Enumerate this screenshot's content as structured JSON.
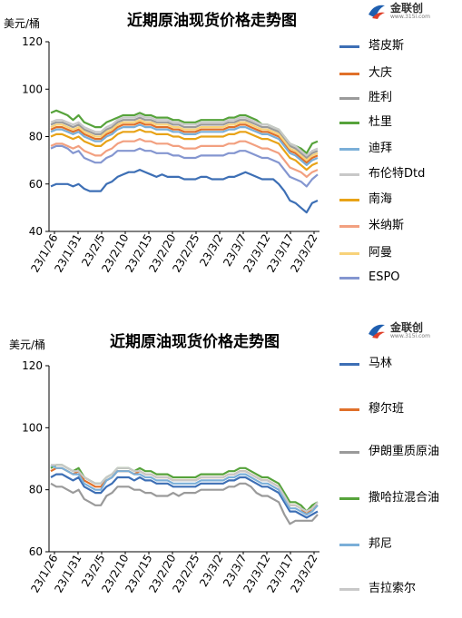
{
  "chart_data": [
    {
      "type": "line",
      "title": "近期原油现货价格走势图",
      "ylabel": "美元/桶",
      "ylim": [
        40,
        120
      ],
      "yticks": [
        40,
        60,
        80,
        100,
        120
      ],
      "xtick_labels": [
        "23/1/26",
        "23/1/31",
        "23/2/5",
        "23/2/10",
        "23/2/15",
        "23/2/20",
        "23/2/25",
        "23/3/2",
        "23/3/7",
        "23/3/12",
        "23/3/17",
        "23/3/22"
      ],
      "x_start": "23/1/26",
      "x_end": "23/3/22",
      "legend_position": "right",
      "grid": false,
      "series": [
        {
          "name": "塔皮斯",
          "color": "#3d6fb5",
          "values": [
            59,
            60,
            60,
            60,
            59,
            60,
            58,
            57,
            57,
            57,
            60,
            61,
            63,
            64,
            65,
            65,
            66,
            65,
            64,
            63,
            64,
            63,
            63,
            63,
            62,
            62,
            62,
            63,
            63,
            62,
            62,
            62,
            63,
            63,
            64,
            65,
            64,
            63,
            62,
            62,
            62,
            60,
            57,
            53,
            52,
            50,
            48,
            52,
            53
          ]
        },
        {
          "name": "大庆",
          "color": "#e0702a",
          "values": [
            83,
            84,
            84,
            83,
            82,
            83,
            81,
            80,
            79,
            79,
            81,
            82,
            84,
            85,
            85,
            85,
            86,
            85,
            85,
            84,
            84,
            84,
            83,
            83,
            82,
            82,
            82,
            83,
            83,
            83,
            83,
            83,
            84,
            84,
            85,
            85,
            84,
            83,
            82,
            82,
            81,
            80,
            77,
            74,
            73,
            71,
            69,
            71,
            72
          ]
        },
        {
          "name": "胜利",
          "color": "#9a9a9a",
          "values": [
            85,
            86,
            86,
            85,
            84,
            85,
            83,
            82,
            81,
            81,
            83,
            84,
            86,
            87,
            87,
            87,
            88,
            87,
            87,
            86,
            86,
            86,
            85,
            85,
            84,
            84,
            84,
            85,
            85,
            85,
            85,
            85,
            86,
            86,
            87,
            87,
            86,
            85,
            84,
            84,
            83,
            82,
            79,
            76,
            75,
            73,
            71,
            73,
            74
          ]
        },
        {
          "name": "杜里",
          "color": "#56a33b",
          "values": [
            90,
            91,
            90,
            89,
            87,
            89,
            86,
            85,
            84,
            84,
            86,
            87,
            88,
            89,
            89,
            89,
            90,
            89,
            89,
            88,
            88,
            88,
            87,
            87,
            86,
            86,
            86,
            87,
            87,
            87,
            87,
            87,
            88,
            88,
            89,
            89,
            88,
            87,
            85,
            85,
            84,
            83,
            80,
            77,
            76,
            75,
            73,
            77,
            78
          ]
        },
        {
          "name": "迪拜",
          "color": "#7bafd8",
          "values": [
            82,
            83,
            83,
            82,
            81,
            82,
            80,
            79,
            78,
            78,
            80,
            81,
            83,
            84,
            84,
            84,
            85,
            84,
            84,
            83,
            83,
            83,
            82,
            82,
            81,
            81,
            81,
            82,
            82,
            82,
            82,
            82,
            83,
            83,
            84,
            84,
            83,
            82,
            81,
            81,
            80,
            79,
            76,
            73,
            72,
            70,
            68,
            70,
            71
          ]
        },
        {
          "name": "布伦特Dtd",
          "color": "#c8c8c8",
          "values": [
            86,
            87,
            87,
            86,
            85,
            86,
            84,
            83,
            82,
            82,
            84,
            85,
            87,
            88,
            88,
            88,
            89,
            88,
            88,
            87,
            87,
            87,
            86,
            86,
            85,
            85,
            85,
            86,
            86,
            86,
            86,
            86,
            87,
            87,
            88,
            88,
            87,
            86,
            85,
            85,
            84,
            83,
            80,
            77,
            76,
            74,
            72,
            74,
            75
          ]
        },
        {
          "name": "南海",
          "color": "#e8a317",
          "values": [
            80,
            81,
            81,
            80,
            79,
            80,
            78,
            77,
            76,
            76,
            78,
            79,
            81,
            82,
            82,
            82,
            83,
            82,
            82,
            81,
            81,
            81,
            80,
            80,
            79,
            79,
            79,
            80,
            80,
            80,
            80,
            80,
            81,
            81,
            82,
            82,
            81,
            80,
            79,
            79,
            78,
            77,
            74,
            71,
            70,
            68,
            66,
            68,
            69
          ]
        },
        {
          "name": "米纳斯",
          "color": "#f2a080",
          "values": [
            76,
            77,
            77,
            76,
            75,
            76,
            74,
            73,
            72,
            72,
            74,
            75,
            77,
            78,
            78,
            78,
            79,
            78,
            78,
            77,
            77,
            77,
            76,
            76,
            75,
            75,
            75,
            76,
            76,
            76,
            76,
            76,
            77,
            77,
            78,
            78,
            77,
            76,
            75,
            75,
            74,
            73,
            70,
            67,
            66,
            65,
            63,
            65,
            66
          ]
        },
        {
          "name": "阿曼",
          "color": "#f8d27a",
          "values": [
            84,
            85,
            85,
            84,
            83,
            84,
            82,
            81,
            80,
            80,
            82,
            83,
            85,
            86,
            86,
            86,
            87,
            86,
            86,
            85,
            85,
            85,
            84,
            84,
            83,
            83,
            83,
            84,
            84,
            84,
            84,
            84,
            85,
            85,
            86,
            86,
            85,
            84,
            83,
            83,
            82,
            81,
            78,
            75,
            74,
            72,
            70,
            72,
            73
          ]
        },
        {
          "name": "ESPO",
          "color": "#8496d0",
          "values": [
            75,
            76,
            76,
            75,
            73,
            74,
            71,
            70,
            69,
            69,
            71,
            72,
            74,
            74,
            74,
            74,
            75,
            74,
            74,
            73,
            73,
            73,
            72,
            72,
            71,
            71,
            71,
            72,
            72,
            72,
            72,
            72,
            73,
            73,
            74,
            74,
            73,
            72,
            71,
            71,
            70,
            69,
            66,
            63,
            62,
            61,
            59,
            62,
            64
          ]
        }
      ]
    },
    {
      "type": "line",
      "title": "近期原油现货价格走势图",
      "ylabel": "美元/桶",
      "ylim": [
        60,
        120
      ],
      "yticks": [
        60,
        80,
        100,
        120
      ],
      "xtick_labels": [
        "23/1/26",
        "23/1/31",
        "23/2/5",
        "23/2/10",
        "23/2/15",
        "23/2/20",
        "23/2/25",
        "23/3/2",
        "23/3/7",
        "23/3/12",
        "23/3/17",
        "23/3/22"
      ],
      "x_start": "23/1/26",
      "x_end": "23/3/22",
      "legend_position": "right",
      "grid": false,
      "series": [
        {
          "name": "马林",
          "color": "#3d6fb5",
          "values": [
            84,
            85,
            85,
            84,
            83,
            84,
            81,
            80,
            79,
            79,
            81,
            82,
            84,
            84,
            84,
            83,
            84,
            83,
            83,
            82,
            82,
            82,
            81,
            81,
            81,
            81,
            81,
            82,
            82,
            82,
            82,
            82,
            83,
            83,
            84,
            84,
            83,
            82,
            81,
            81,
            80,
            79,
            76,
            73,
            73,
            72,
            71,
            72,
            73
          ]
        },
        {
          "name": "穆尔班",
          "color": "#e0702a",
          "values": [
            86,
            87,
            87,
            86,
            85,
            86,
            83,
            82,
            81,
            81,
            83,
            84,
            86,
            86,
            86,
            85,
            86,
            85,
            85,
            84,
            84,
            84,
            83,
            83,
            83,
            83,
            83,
            84,
            84,
            84,
            84,
            84,
            85,
            85,
            86,
            86,
            85,
            84,
            83,
            83,
            82,
            81,
            78,
            75,
            75,
            74,
            72,
            74,
            75
          ]
        },
        {
          "name": "伊朗重质原油",
          "color": "#9a9a9a",
          "values": [
            82,
            81,
            81,
            80,
            79,
            80,
            77,
            76,
            75,
            75,
            78,
            79,
            81,
            81,
            81,
            80,
            80,
            79,
            79,
            78,
            78,
            78,
            79,
            78,
            79,
            79,
            79,
            80,
            80,
            80,
            80,
            80,
            81,
            81,
            82,
            82,
            81,
            79,
            78,
            78,
            77,
            76,
            72,
            69,
            70,
            70,
            70,
            70,
            72
          ]
        },
        {
          "name": "撒哈拉混合油",
          "color": "#56a33b",
          "values": [
            87,
            88,
            88,
            87,
            86,
            87,
            84,
            83,
            82,
            82,
            84,
            85,
            87,
            87,
            87,
            86,
            87,
            86,
            86,
            85,
            85,
            85,
            84,
            84,
            84,
            84,
            84,
            85,
            85,
            85,
            85,
            85,
            86,
            86,
            87,
            87,
            86,
            85,
            84,
            84,
            83,
            82,
            79,
            76,
            76,
            75,
            73,
            75,
            76
          ]
        },
        {
          "name": "邦尼",
          "color": "#7bafd8",
          "values": [
            88,
            87,
            87,
            86,
            85,
            85,
            82,
            81,
            80,
            80,
            83,
            84,
            86,
            86,
            86,
            85,
            85,
            84,
            84,
            83,
            83,
            83,
            82,
            82,
            82,
            82,
            82,
            83,
            83,
            83,
            83,
            83,
            84,
            84,
            85,
            85,
            84,
            83,
            82,
            82,
            81,
            80,
            77,
            74,
            74,
            73,
            72,
            73,
            75
          ]
        },
        {
          "name": "吉拉索尔",
          "color": "#c8c8c8",
          "values": [
            88,
            88,
            88,
            87,
            86,
            86,
            84,
            83,
            82,
            82,
            84,
            85,
            87,
            87,
            87,
            86,
            86,
            85,
            85,
            84,
            84,
            84,
            83,
            83,
            83,
            83,
            83,
            84,
            84,
            84,
            84,
            84,
            85,
            85,
            86,
            86,
            85,
            84,
            83,
            83,
            82,
            81,
            78,
            75,
            75,
            74,
            73,
            74,
            76
          ]
        }
      ]
    }
  ],
  "logo": {
    "text": "金联创",
    "sub": "www.315i.com"
  }
}
